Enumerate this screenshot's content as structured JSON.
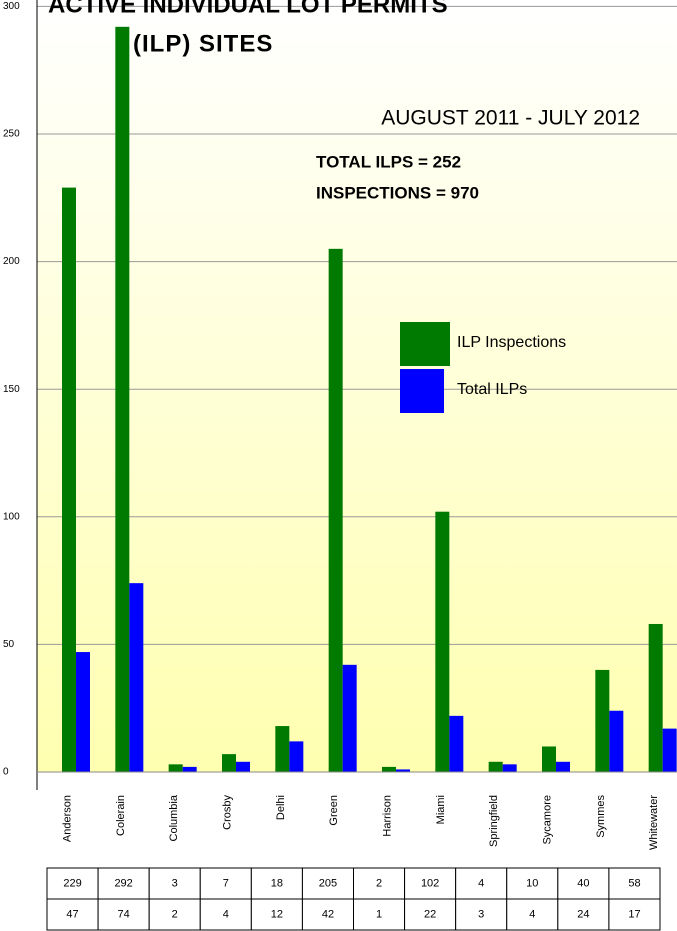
{
  "chart_data": {
    "type": "bar",
    "title": "ACTIVE INDIVIDUAL LOT PERMITS",
    "subtitle": "(ILP) SITES",
    "annotations": [
      "AUGUST 2011 - JULY 2012",
      "TOTAL ILPS = 252",
      "INSPECTIONS = 970"
    ],
    "categories": [
      "Anderson",
      "Colerain",
      "Columbia",
      "Crosby",
      "Delhi",
      "Green",
      "Harrison",
      "Miami",
      "Springfield",
      "Sycamore",
      "Symmes",
      "Whitewater"
    ],
    "series": [
      {
        "name": "ILP Inspections",
        "color": "#007a00",
        "values": [
          229,
          292,
          3,
          7,
          18,
          205,
          2,
          102,
          4,
          10,
          40,
          58
        ]
      },
      {
        "name": "Total ILPs",
        "color": "#0000ff",
        "values": [
          47,
          74,
          2,
          4,
          12,
          42,
          1,
          22,
          3,
          4,
          24,
          17
        ]
      }
    ],
    "ylim": [
      0,
      300
    ],
    "yticks": [
      0,
      50,
      100,
      150,
      200,
      250,
      300
    ],
    "grid": true,
    "legend": "center-right"
  }
}
